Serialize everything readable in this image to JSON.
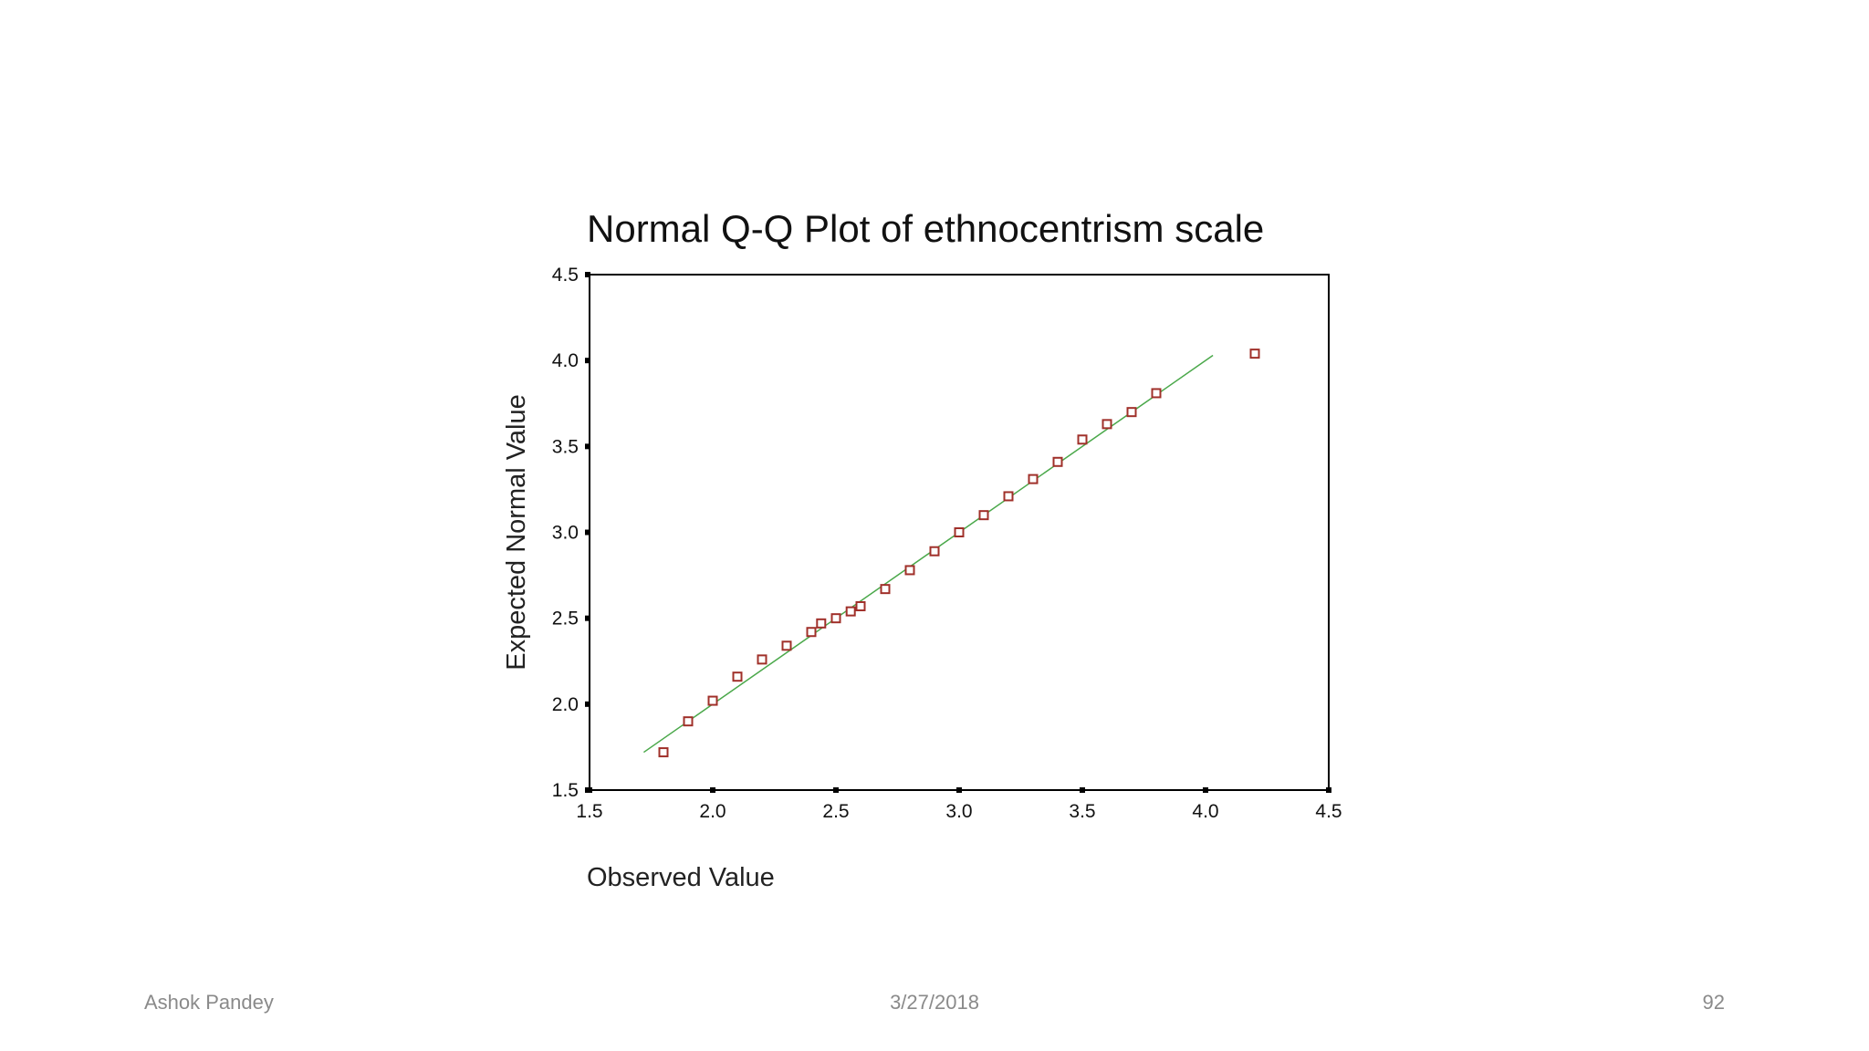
{
  "slide": {
    "author": "Ashok Pandey",
    "date": "3/27/2018",
    "page_number": "92"
  },
  "colors": {
    "point": "#a0302a",
    "line": "#4aa84a",
    "axis": "#000000"
  },
  "chart_data": {
    "type": "scatter",
    "title": "Normal Q-Q Plot of ethnocentrism scale",
    "xlabel": "Observed Value",
    "ylabel": "Expected Normal Value",
    "xlim": [
      1.5,
      4.5
    ],
    "ylim": [
      1.5,
      4.5
    ],
    "xticks": [
      "1.5",
      "2.0",
      "2.5",
      "3.0",
      "3.5",
      "4.0",
      "4.5"
    ],
    "yticks": [
      "1.5",
      "2.0",
      "2.5",
      "3.0",
      "3.5",
      "4.0",
      "4.5"
    ],
    "reference_line": {
      "x": [
        1.72,
        4.03
      ],
      "y": [
        1.72,
        4.03
      ]
    },
    "series": [
      {
        "name": "ethnocentrism scale",
        "x": [
          1.8,
          1.9,
          2.0,
          2.1,
          2.2,
          2.3,
          2.4,
          2.44,
          2.5,
          2.56,
          2.6,
          2.7,
          2.8,
          2.9,
          3.0,
          3.1,
          3.2,
          3.3,
          3.4,
          3.5,
          3.6,
          3.7,
          3.8,
          4.2
        ],
        "y": [
          1.72,
          1.9,
          2.02,
          2.16,
          2.26,
          2.34,
          2.42,
          2.47,
          2.5,
          2.54,
          2.57,
          2.67,
          2.78,
          2.89,
          3.0,
          3.1,
          3.21,
          3.31,
          3.41,
          3.54,
          3.63,
          3.7,
          3.81,
          4.04
        ]
      }
    ]
  }
}
